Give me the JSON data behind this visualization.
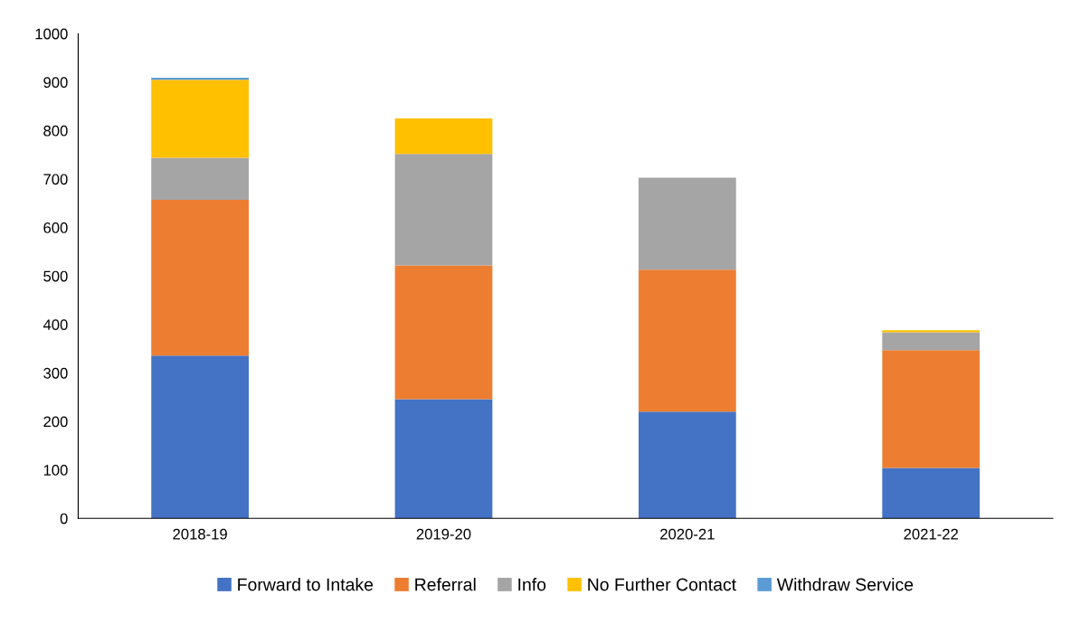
{
  "chart_data": {
    "type": "bar",
    "stacked": true,
    "categories": [
      "2018-19",
      "2019-20",
      "2020-21",
      "2021-22"
    ],
    "series": [
      {
        "name": "Forward to Intake",
        "color": "#4472c4",
        "values": [
          336,
          246,
          220,
          104
        ]
      },
      {
        "name": "Referral",
        "color": "#ed7d31",
        "values": [
          321,
          276,
          293,
          243
        ]
      },
      {
        "name": "Info",
        "color": "#a5a5a5",
        "values": [
          87,
          230,
          190,
          37
        ]
      },
      {
        "name": "No Further Contact",
        "color": "#ffc000",
        "values": [
          161,
          73,
          0,
          4
        ]
      },
      {
        "name": "Withdraw Service",
        "color": "#5b9bd5",
        "values": [
          4,
          0,
          0,
          0
        ]
      }
    ],
    "ylim": [
      0,
      1000
    ],
    "yticks": [
      0,
      100,
      200,
      300,
      400,
      500,
      600,
      700,
      800,
      900,
      1000
    ],
    "grid": false,
    "legend": "bottom"
  }
}
